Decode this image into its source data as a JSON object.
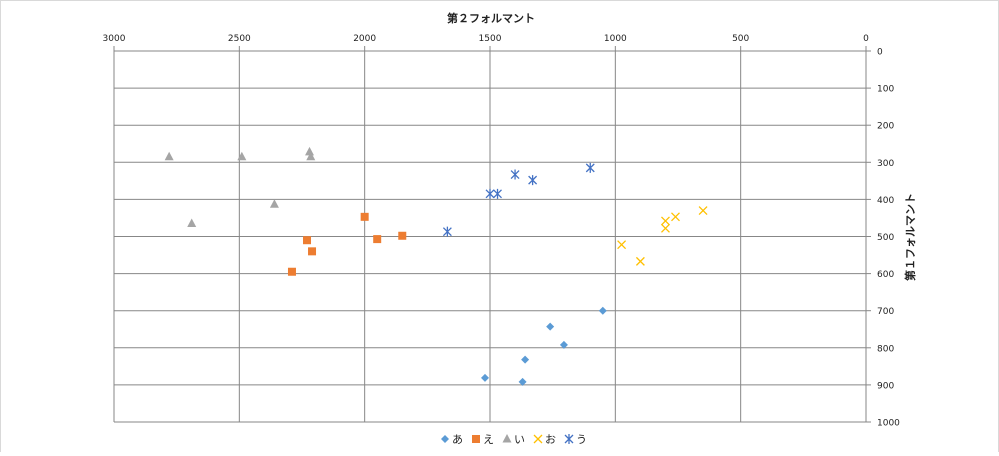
{
  "chart_data": {
    "type": "scatter",
    "title": "第２フォルマント",
    "xlabel": "",
    "ylabel": "第１フォルマント",
    "x_axis_position": "top",
    "x_reversed": true,
    "y_axis_position": "right",
    "y_reversed": true,
    "xlim": [
      0,
      3000
    ],
    "ylim": [
      0,
      1000
    ],
    "x_ticks": [
      3000,
      2500,
      2000,
      1500,
      1000,
      500,
      0
    ],
    "y_ticks": [
      0,
      100,
      200,
      300,
      400,
      500,
      600,
      700,
      800,
      900,
      1000
    ],
    "grid": true,
    "legend_position": "bottom",
    "series": [
      {
        "name": "あ",
        "marker": "diamond",
        "color": "#5b9bd5",
        "points": [
          [
            1050,
            700
          ],
          [
            1260,
            743
          ],
          [
            1205,
            792
          ],
          [
            1360,
            832
          ],
          [
            1520,
            881
          ],
          [
            1370,
            892
          ]
        ]
      },
      {
        "name": "え",
        "marker": "square",
        "color": "#ed7d31",
        "points": [
          [
            2000,
            447
          ],
          [
            1950,
            507
          ],
          [
            1850,
            498
          ],
          [
            2230,
            510
          ],
          [
            2210,
            540
          ],
          [
            2290,
            595
          ]
        ]
      },
      {
        "name": "い",
        "marker": "triangle",
        "color": "#a5a5a5",
        "points": [
          [
            2780,
            285
          ],
          [
            2490,
            285
          ],
          [
            2220,
            272
          ],
          [
            2215,
            285
          ],
          [
            2360,
            413
          ],
          [
            2690,
            465
          ]
        ]
      },
      {
        "name": "お",
        "marker": "x",
        "color": "#ffc000",
        "points": [
          [
            650,
            430
          ],
          [
            760,
            447
          ],
          [
            800,
            458
          ],
          [
            800,
            478
          ],
          [
            975,
            522
          ],
          [
            900,
            567
          ]
        ]
      },
      {
        "name": "う",
        "marker": "star",
        "color": "#4472c4",
        "points": [
          [
            1100,
            315
          ],
          [
            1330,
            348
          ],
          [
            1400,
            333
          ],
          [
            1500,
            385
          ],
          [
            1470,
            385
          ],
          [
            1670,
            487
          ]
        ]
      }
    ]
  }
}
